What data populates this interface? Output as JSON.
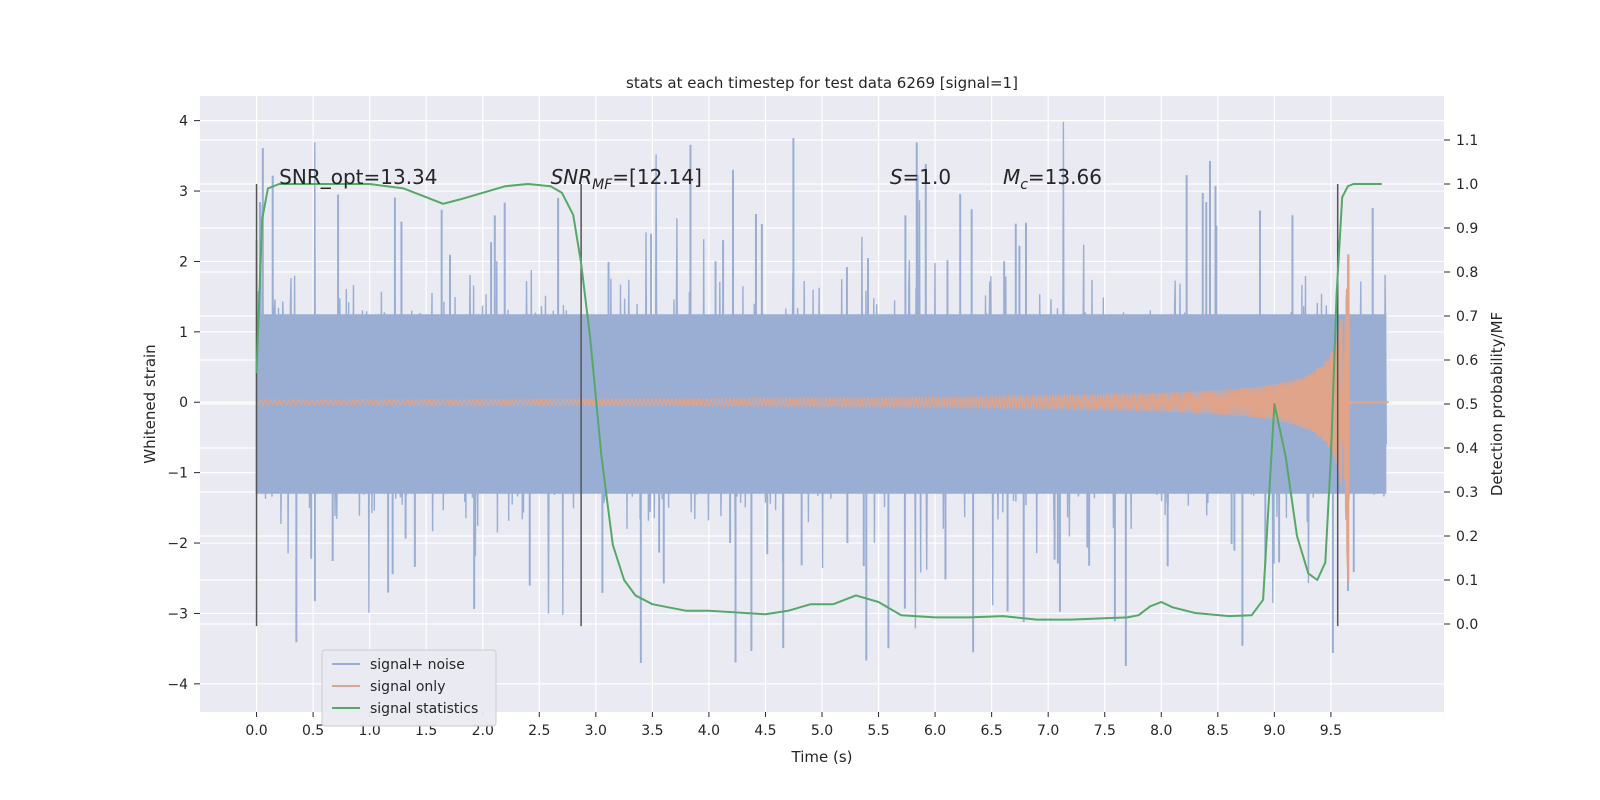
{
  "chart_data": {
    "type": "line",
    "title": "stats at each timestep for test data 6269 [signal=1]",
    "xlabel": "Time (s)",
    "ylabel": "Whitened strain",
    "ylabel_right": "Detection probability/MF",
    "xlim": [
      -0.5,
      10.5
    ],
    "ylim": [
      -4.4,
      4.35
    ],
    "ylim_right": [
      -0.2,
      1.2
    ],
    "x_ticks": [
      0.0,
      0.5,
      1.0,
      1.5,
      2.0,
      2.5,
      3.0,
      3.5,
      4.0,
      4.5,
      5.0,
      5.5,
      6.0,
      6.5,
      7.0,
      7.5,
      8.0,
      8.5,
      9.0,
      9.5
    ],
    "x_tick_labels": [
      "0.0",
      "0.5",
      "1.0",
      "1.5",
      "2.0",
      "2.5",
      "3.0",
      "3.5",
      "4.0",
      "4.5",
      "5.0",
      "5.5",
      "6.0",
      "6.5",
      "7.0",
      "7.5",
      "8.0",
      "8.5",
      "9.0",
      "9.5"
    ],
    "y_ticks": [
      -4,
      -3,
      -2,
      -1,
      0,
      1,
      2,
      3,
      4
    ],
    "y_tick_labels": [
      "−4",
      "−3",
      "−2",
      "−1",
      "0",
      "1",
      "2",
      "3",
      "4"
    ],
    "y_right_ticks": [
      0.0,
      0.1,
      0.2,
      0.3,
      0.4,
      0.5,
      0.6,
      0.7,
      0.8,
      0.9,
      1.0,
      1.1
    ],
    "y_right_tick_labels": [
      "0.0",
      "0.1",
      "0.2",
      "0.3",
      "0.4",
      "0.5",
      "0.6",
      "0.7",
      "0.8",
      "0.9",
      "1.0",
      "1.1"
    ],
    "grid": true,
    "legend_position": "lower-left",
    "colors": {
      "plot_background": "#eaeaf2",
      "grid": "#ffffff",
      "signal_noise": "#9aaed4",
      "signal_only": "#e0a48a",
      "signal_statistics": "#55a868",
      "vertical_markers": "#555555"
    },
    "annotations": [
      {
        "text": "SNR_opt=13.34",
        "x": 0.2,
        "y": 3.1
      },
      {
        "text": "SNR",
        "sub": "MF",
        "rest": "=[12.14]",
        "x": 2.6,
        "y": 3.1
      },
      {
        "text": "S",
        "rest": "=1.0",
        "x": 5.6,
        "y": 3.1
      },
      {
        "text": "M",
        "sub": "c",
        "rest": "=13.66",
        "x": 6.6,
        "y": 3.1
      }
    ],
    "vertical_markers": [
      0.0,
      2.87,
      9.56
    ],
    "marker_ylim": [
      -3.18,
      3.1
    ],
    "series": [
      {
        "name": "signal+ noise",
        "axis": "left",
        "style": "noise",
        "x_range": [
          0.0,
          9.99
        ],
        "typical_range": [
          -1.3,
          1.25
        ],
        "max_value": 3.98,
        "min_value": -4.05
      },
      {
        "name": "signal only",
        "axis": "left",
        "style": "chirp",
        "x_range": [
          0.0,
          9.7
        ],
        "merger_time": 9.66,
        "peak_value": 2.1,
        "min_value": -2.55
      },
      {
        "name": "signal statistics",
        "axis": "right",
        "style": "line",
        "x": [
          0.0,
          0.05,
          0.1,
          0.2,
          0.4,
          0.7,
          1.0,
          1.3,
          1.5,
          1.65,
          1.8,
          2.0,
          2.2,
          2.4,
          2.6,
          2.7,
          2.8,
          2.87,
          2.95,
          3.05,
          3.15,
          3.25,
          3.35,
          3.5,
          3.8,
          4.0,
          4.2,
          4.5,
          4.7,
          4.9,
          5.1,
          5.3,
          5.5,
          5.7,
          6.0,
          6.3,
          6.6,
          6.9,
          7.2,
          7.5,
          7.7,
          7.8,
          7.9,
          8.0,
          8.1,
          8.3,
          8.6,
          8.8,
          8.9,
          9.0,
          9.1,
          9.2,
          9.3,
          9.38,
          9.45,
          9.5,
          9.55,
          9.6,
          9.65,
          9.7,
          9.8,
          9.95
        ],
        "y": [
          0.57,
          0.92,
          0.99,
          1.0,
          1.0,
          1.0,
          1.0,
          0.99,
          0.97,
          0.955,
          0.965,
          0.98,
          0.995,
          1.0,
          0.995,
          0.98,
          0.93,
          0.82,
          0.65,
          0.38,
          0.18,
          0.1,
          0.065,
          0.045,
          0.03,
          0.03,
          0.027,
          0.022,
          0.03,
          0.045,
          0.045,
          0.065,
          0.05,
          0.02,
          0.015,
          0.015,
          0.018,
          0.01,
          0.01,
          0.013,
          0.015,
          0.02,
          0.04,
          0.05,
          0.038,
          0.025,
          0.018,
          0.02,
          0.055,
          0.5,
          0.38,
          0.2,
          0.115,
          0.1,
          0.14,
          0.38,
          0.75,
          0.97,
          0.995,
          1.0,
          1.0,
          1.0
        ]
      }
    ]
  },
  "legend": {
    "items": [
      {
        "label": "signal+ noise",
        "color": "#9aaed4"
      },
      {
        "label": "signal only",
        "color": "#e0a48a"
      },
      {
        "label": "signal statistics",
        "color": "#55a868"
      }
    ]
  }
}
